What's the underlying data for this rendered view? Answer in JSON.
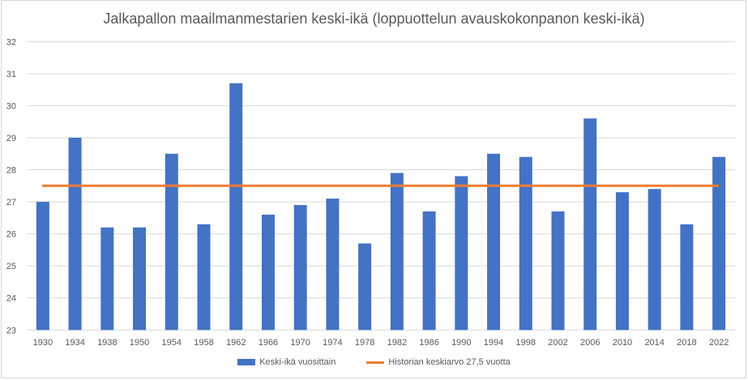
{
  "chart_data": {
    "type": "bar",
    "title": "Jalkapallon maailmanmestarien keski-ikä (loppuottelun avauskokonpanon keski-ikä)",
    "categories": [
      "1930",
      "1934",
      "1938",
      "1950",
      "1954",
      "1958",
      "1962",
      "1966",
      "1970",
      "1974",
      "1978",
      "1982",
      "1986",
      "1990",
      "1994",
      "1998",
      "2002",
      "2006",
      "2010",
      "2014",
      "2018",
      "2022"
    ],
    "series": [
      {
        "name": "Keski-ikä vuosittain",
        "type": "bar",
        "color": "#4472c4",
        "values": [
          27.0,
          29.0,
          26.2,
          26.2,
          28.5,
          26.3,
          30.7,
          26.6,
          26.9,
          27.1,
          25.7,
          27.9,
          26.7,
          27.8,
          28.5,
          28.4,
          26.7,
          29.6,
          27.3,
          27.4,
          26.3,
          28.4
        ]
      },
      {
        "name": "Historian keskiarvo 27,5 vuotta",
        "type": "line",
        "color": "#ed7d31",
        "values": [
          27.5,
          27.5,
          27.5,
          27.5,
          27.5,
          27.5,
          27.5,
          27.5,
          27.5,
          27.5,
          27.5,
          27.5,
          27.5,
          27.5,
          27.5,
          27.5,
          27.5,
          27.5,
          27.5,
          27.5,
          27.5,
          27.5
        ]
      }
    ],
    "ylim": [
      23,
      32
    ],
    "yticks": [
      "23",
      "24",
      "25",
      "26",
      "27",
      "28",
      "29",
      "30",
      "31",
      "32"
    ],
    "grid": true,
    "legend": "bottom",
    "xlabel": "",
    "ylabel": ""
  }
}
